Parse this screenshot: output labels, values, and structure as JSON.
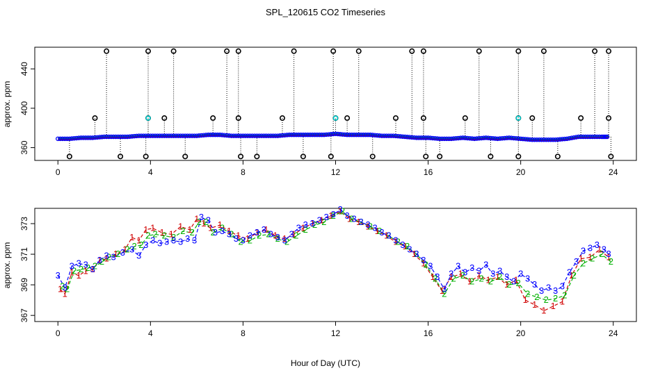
{
  "chart_data": [
    {
      "type": "scatter",
      "title": "SPL_120615  CO2 Timeseries",
      "xlabel": "",
      "ylabel": "approx. ppm",
      "xlim": [
        -1,
        25
      ],
      "ylim": [
        347,
        462
      ],
      "xticks": [
        0,
        4,
        8,
        12,
        16,
        20,
        24
      ],
      "yticks": [
        360,
        400,
        440
      ],
      "colors": {
        "line": "#000000",
        "series1": "#d00000",
        "series2": "#00b000",
        "series3": "#0000ff",
        "spike": "#00cccc",
        "frame": "#000000"
      },
      "baseline": {
        "x": [
          0,
          0.5,
          1,
          1.5,
          2,
          2.5,
          3,
          3.5,
          4,
          4.5,
          5,
          5.5,
          6,
          6.5,
          7,
          7.5,
          8,
          8.5,
          9,
          9.5,
          10,
          10.5,
          11,
          11.5,
          12,
          12.5,
          13,
          13.5,
          14,
          14.5,
          15,
          15.5,
          16,
          16.5,
          17,
          17.5,
          18,
          18.5,
          19,
          19.5,
          20,
          20.5,
          21,
          21.5,
          22,
          22.5,
          23,
          23.5,
          23.8
        ],
        "y": [
          369,
          369,
          370,
          370,
          371,
          371,
          371,
          372,
          372,
          372,
          372,
          372,
          372,
          373,
          373,
          372,
          372,
          372,
          372,
          372,
          373,
          373,
          373,
          373,
          374,
          373,
          373,
          373,
          372,
          372,
          371,
          370,
          370,
          369,
          369,
          370,
          369,
          370,
          369,
          370,
          369,
          368,
          368,
          368,
          369,
          371,
          371,
          371,
          371
        ]
      },
      "spikes_high": {
        "x": [
          2.1,
          3.9,
          5.0,
          7.3,
          7.8,
          10.2,
          11.9,
          13.0,
          15.3,
          15.8,
          18.2,
          19.9,
          21.0,
          23.2,
          23.8
        ],
        "y": [
          458,
          458,
          458,
          458,
          458,
          458,
          458,
          458,
          458,
          458,
          458,
          458,
          458,
          458,
          458
        ]
      },
      "spikes_mid": {
        "x": [
          1.6,
          3.9,
          4.6,
          6.7,
          7.8,
          9.7,
          12.0,
          12.5,
          14.6,
          15.8,
          17.6,
          19.9,
          20.5,
          22.6,
          23.8
        ],
        "y": [
          390,
          390,
          390,
          390,
          390,
          390,
          390,
          390,
          390,
          390,
          390,
          390,
          390,
          390,
          390
        ]
      },
      "spikes_low": {
        "x": [
          0.5,
          2.7,
          3.8,
          5.5,
          7.9,
          8.6,
          10.6,
          11.8,
          13.6,
          15.9,
          16.5,
          18.7,
          19.9,
          21.6,
          23.9
        ],
        "y": [
          351,
          351,
          351,
          351,
          351,
          351,
          351,
          351,
          351,
          351,
          351,
          351,
          351,
          351,
          351
        ]
      }
    },
    {
      "type": "line",
      "title": "",
      "xlabel": "Hour of Day (UTC)",
      "ylabel": "approx. ppm",
      "xlim": [
        -1,
        25
      ],
      "ylim": [
        366.6,
        374.0
      ],
      "xticks": [
        0,
        4,
        8,
        12,
        16,
        20,
        24
      ],
      "yticks": [
        367,
        369,
        371,
        373
      ],
      "series": [
        {
          "marker": "1",
          "color": "#d00000",
          "x": [
            0.1,
            0.3,
            0.6,
            0.9,
            1.2,
            1.5,
            1.8,
            2.1,
            2.5,
            2.9,
            3.2,
            3.5,
            3.8,
            4.1,
            4.5,
            4.9,
            5.3,
            5.7,
            6.0,
            6.3,
            6.6,
            7.0,
            7.4,
            7.8,
            8.2,
            8.6,
            9.0,
            9.4,
            9.8,
            10.2,
            10.6,
            11.0,
            11.4,
            11.8,
            12.2,
            12.6,
            13.0,
            13.4,
            13.8,
            14.2,
            14.6,
            15.0,
            15.4,
            15.8,
            16.2,
            16.6,
            17.0,
            17.4,
            17.8,
            18.2,
            18.6,
            19.0,
            19.4,
            19.8,
            20.2,
            20.6,
            21.0,
            21.4,
            21.8,
            22.2,
            22.6,
            23.0,
            23.4,
            23.8
          ],
          "y": [
            368.7,
            368.4,
            369.8,
            369.6,
            369.9,
            370.0,
            370.6,
            370.7,
            371.0,
            371.3,
            372.1,
            371.9,
            372.6,
            372.7,
            372.4,
            372.3,
            372.8,
            372.6,
            373.3,
            373.0,
            372.7,
            372.9,
            372.5,
            372.2,
            372.0,
            372.4,
            372.6,
            372.2,
            372.0,
            372.3,
            372.7,
            373.0,
            373.2,
            373.5,
            373.8,
            373.3,
            373.1,
            372.8,
            372.5,
            372.2,
            371.8,
            371.5,
            371.0,
            370.4,
            369.5,
            368.6,
            369.5,
            369.7,
            369.2,
            369.6,
            369.3,
            369.5,
            369.0,
            369.3,
            368.0,
            367.7,
            367.3,
            367.6,
            367.9,
            369.6,
            370.7,
            370.8,
            371.3,
            370.8
          ]
        },
        {
          "marker": "2",
          "color": "#00b000",
          "x": [
            0.2,
            0.4,
            0.7,
            1.0,
            1.3,
            1.6,
            1.9,
            2.2,
            2.6,
            3.0,
            3.3,
            3.6,
            3.9,
            4.2,
            4.6,
            5.0,
            5.4,
            5.8,
            6.1,
            6.4,
            6.7,
            7.1,
            7.5,
            7.9,
            8.3,
            8.7,
            9.1,
            9.5,
            9.9,
            10.3,
            10.7,
            11.1,
            11.5,
            11.9,
            12.3,
            12.7,
            13.1,
            13.5,
            13.9,
            14.3,
            14.7,
            15.1,
            15.5,
            15.9,
            16.3,
            16.7,
            17.1,
            17.5,
            17.9,
            18.3,
            18.7,
            19.1,
            19.5,
            19.9,
            20.3,
            20.7,
            21.1,
            21.5,
            21.9,
            22.3,
            22.7,
            23.1,
            23.5,
            23.9
          ],
          "y": [
            368.9,
            368.7,
            369.9,
            370.0,
            370.1,
            370.2,
            370.5,
            370.8,
            371.0,
            371.3,
            371.5,
            371.6,
            372.2,
            372.3,
            372.2,
            372.1,
            372.5,
            372.4,
            373.1,
            373.1,
            372.4,
            372.7,
            372.3,
            371.8,
            371.9,
            372.2,
            372.3,
            372.0,
            371.8,
            372.2,
            372.6,
            372.9,
            373.1,
            373.5,
            373.8,
            373.3,
            373.1,
            372.8,
            372.5,
            372.2,
            371.8,
            371.5,
            371.0,
            370.3,
            369.4,
            368.4,
            369.4,
            369.6,
            369.2,
            369.4,
            369.2,
            369.5,
            369.0,
            369.1,
            368.4,
            368.2,
            368.0,
            368.1,
            368.3,
            369.6,
            370.4,
            370.7,
            371.0,
            370.5
          ]
        },
        {
          "marker": "3",
          "color": "#0000ff",
          "x": [
            0.0,
            0.3,
            0.6,
            0.9,
            1.2,
            1.5,
            1.8,
            2.1,
            2.4,
            2.8,
            3.2,
            3.5,
            3.8,
            4.1,
            4.4,
            4.7,
            5.0,
            5.3,
            5.6,
            5.9,
            6.2,
            6.5,
            6.8,
            7.1,
            7.4,
            7.7,
            8.0,
            8.3,
            8.6,
            8.9,
            9.2,
            9.5,
            9.8,
            10.1,
            10.4,
            10.7,
            11.0,
            11.3,
            11.6,
            11.9,
            12.2,
            12.5,
            12.8,
            13.1,
            13.4,
            13.7,
            14.0,
            14.3,
            14.6,
            14.9,
            15.2,
            15.5,
            15.8,
            16.1,
            16.4,
            16.7,
            17.0,
            17.3,
            17.6,
            17.9,
            18.2,
            18.5,
            18.8,
            19.1,
            19.4,
            19.7,
            20.0,
            20.3,
            20.6,
            20.9,
            21.2,
            21.5,
            21.8,
            22.1,
            22.4,
            22.7,
            23.0,
            23.3,
            23.6,
            23.8
          ],
          "y": [
            369.6,
            368.8,
            370.2,
            370.4,
            370.3,
            370.0,
            370.6,
            370.9,
            370.8,
            371.1,
            371.3,
            370.9,
            371.6,
            371.9,
            371.7,
            371.8,
            371.9,
            371.8,
            372.0,
            371.9,
            373.4,
            373.2,
            372.4,
            372.5,
            372.3,
            372.0,
            371.9,
            372.2,
            372.4,
            372.6,
            372.3,
            372.1,
            371.9,
            372.3,
            372.7,
            372.9,
            373.0,
            373.2,
            373.4,
            373.6,
            373.9,
            373.5,
            373.3,
            373.1,
            372.9,
            372.7,
            372.4,
            372.2,
            371.9,
            371.6,
            371.3,
            371.0,
            370.6,
            370.2,
            369.5,
            368.7,
            369.7,
            370.2,
            369.8,
            370.1,
            369.9,
            370.3,
            369.7,
            369.9,
            369.5,
            369.2,
            369.7,
            369.4,
            369.0,
            368.6,
            368.8,
            368.6,
            368.9,
            369.8,
            370.5,
            371.2,
            371.4,
            371.6,
            371.3,
            371.0
          ]
        }
      ]
    }
  ]
}
